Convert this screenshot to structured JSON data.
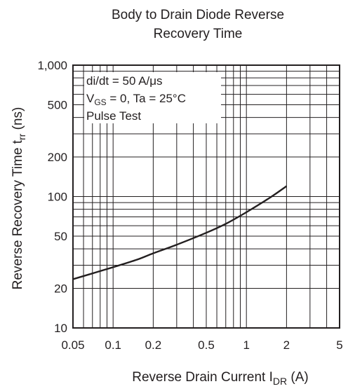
{
  "chart_data": {
    "type": "line",
    "title_line1": "Body to Drain Diode Reverse",
    "title_line2": "Recovery Time",
    "xlabel": {
      "main": "Reverse Drain Current  I",
      "sub": "DR",
      "unit": "  (A)"
    },
    "ylabel": {
      "main": "Reverse Recovery Time  t",
      "sub": "rr",
      "unit": "  (ns)"
    },
    "x_scale": "log",
    "y_scale": "log",
    "xlim": [
      0.05,
      5
    ],
    "ylim": [
      10,
      1000
    ],
    "x_ticks": [
      {
        "value": 0.05,
        "label": "0.05"
      },
      {
        "value": 0.1,
        "label": "0.1"
      },
      {
        "value": 0.2,
        "label": "0.2"
      },
      {
        "value": 0.5,
        "label": "0.5"
      },
      {
        "value": 1,
        "label": "1"
      },
      {
        "value": 2,
        "label": "2"
      },
      {
        "value": 5,
        "label": "5"
      }
    ],
    "y_ticks": [
      {
        "value": 10,
        "label": "10"
      },
      {
        "value": 20,
        "label": "20"
      },
      {
        "value": 50,
        "label": "50"
      },
      {
        "value": 100,
        "label": "100"
      },
      {
        "value": 200,
        "label": "200"
      },
      {
        "value": 500,
        "label": "500"
      },
      {
        "value": 1000,
        "label": "1,000"
      }
    ],
    "grid": true,
    "annotation": {
      "line1": "di/dt = 50 A/μs",
      "line2_main": "V",
      "line2_sub": "GS",
      "line2_rest": " = 0, Ta = 25°C",
      "line3": "Pulse Test"
    },
    "series": [
      {
        "x": [
          0.05,
          0.07,
          0.1,
          0.15,
          0.2,
          0.3,
          0.5,
          0.7,
          1.0,
          1.5,
          2.0
        ],
        "y": [
          23.5,
          26,
          29,
          33,
          37,
          43,
          53,
          62,
          76,
          98,
          120
        ]
      }
    ]
  }
}
